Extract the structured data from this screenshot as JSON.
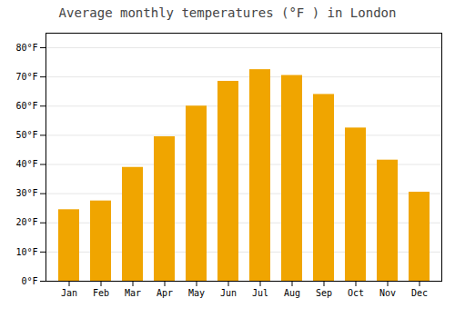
{
  "chart_data": {
    "type": "bar",
    "title": "Average monthly temperatures (°F ) in London",
    "categories": [
      "Jan",
      "Feb",
      "Mar",
      "Apr",
      "May",
      "Jun",
      "Jul",
      "Aug",
      "Sep",
      "Oct",
      "Nov",
      "Dec"
    ],
    "values": [
      24.5,
      27.5,
      39.0,
      49.5,
      60.0,
      68.5,
      72.5,
      70.5,
      64.0,
      52.5,
      41.5,
      30.5
    ],
    "color": "#F0A500",
    "ylim": [
      0,
      85
    ],
    "yticks": [
      {
        "value": 0,
        "label": "0°F"
      },
      {
        "value": 10,
        "label": "10°F"
      },
      {
        "value": 20,
        "label": "20°F"
      },
      {
        "value": 30,
        "label": "30°F"
      },
      {
        "value": 40,
        "label": "40°F"
      },
      {
        "value": 50,
        "label": "50°F"
      },
      {
        "value": 60,
        "label": "60°F"
      },
      {
        "value": 70,
        "label": "70°F"
      },
      {
        "value": 80,
        "label": "80°F"
      }
    ],
    "grid": true
  }
}
